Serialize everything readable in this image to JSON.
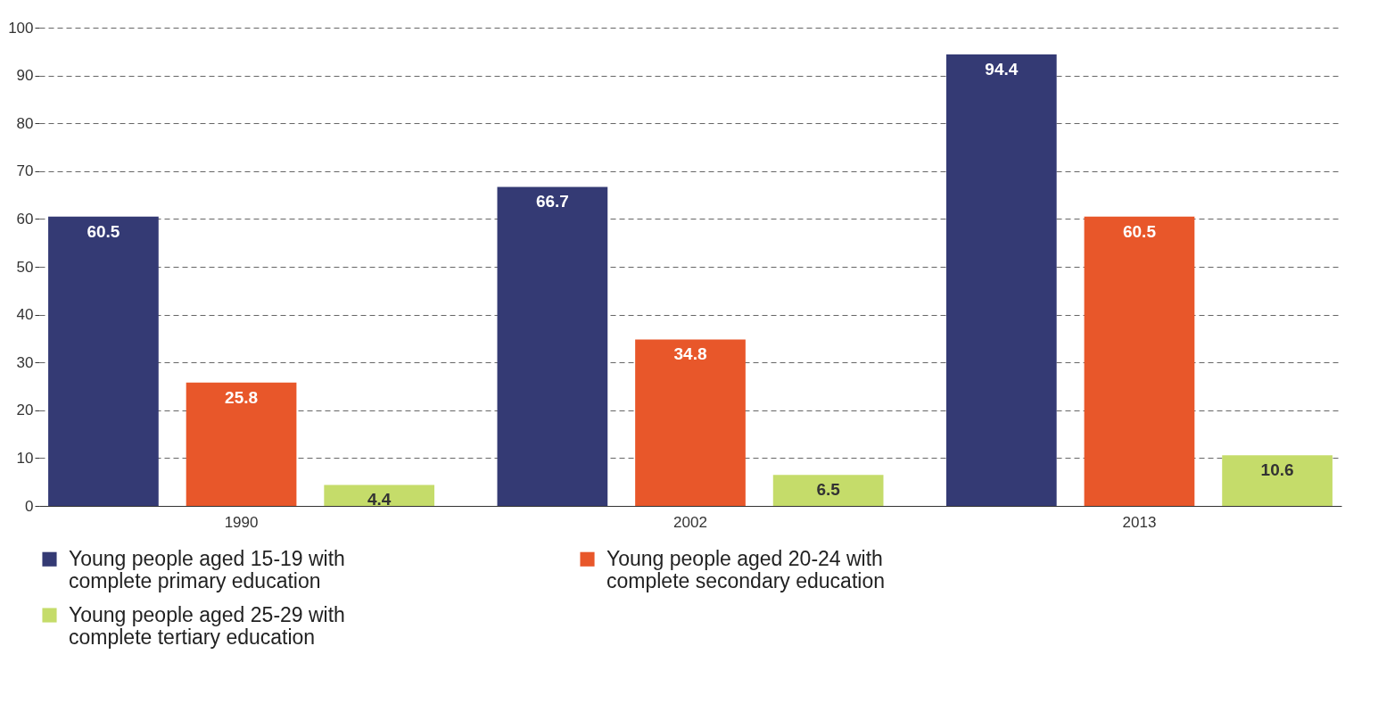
{
  "chart_data": {
    "type": "bar",
    "categories": [
      "1990",
      "2002",
      "2013"
    ],
    "series": [
      {
        "name": "Young people aged 15-19 with complete primary education",
        "color": "#343a74",
        "values": [
          60.5,
          66.7,
          94.4
        ]
      },
      {
        "name": "Young people aged 20-24 with complete secondary education",
        "color": "#e8572a",
        "values": [
          25.8,
          34.8,
          60.5
        ]
      },
      {
        "name": "Young people aged 25-29 with complete tertiary education",
        "color": "#c5dc6a",
        "values": [
          4.4,
          6.5,
          10.6
        ]
      }
    ],
    "ylim": [
      0,
      100
    ],
    "yticks": [
      0,
      10,
      20,
      30,
      40,
      50,
      60,
      70,
      80,
      90,
      100
    ],
    "grid": "y",
    "legend": "bottom",
    "data_labels": true
  }
}
